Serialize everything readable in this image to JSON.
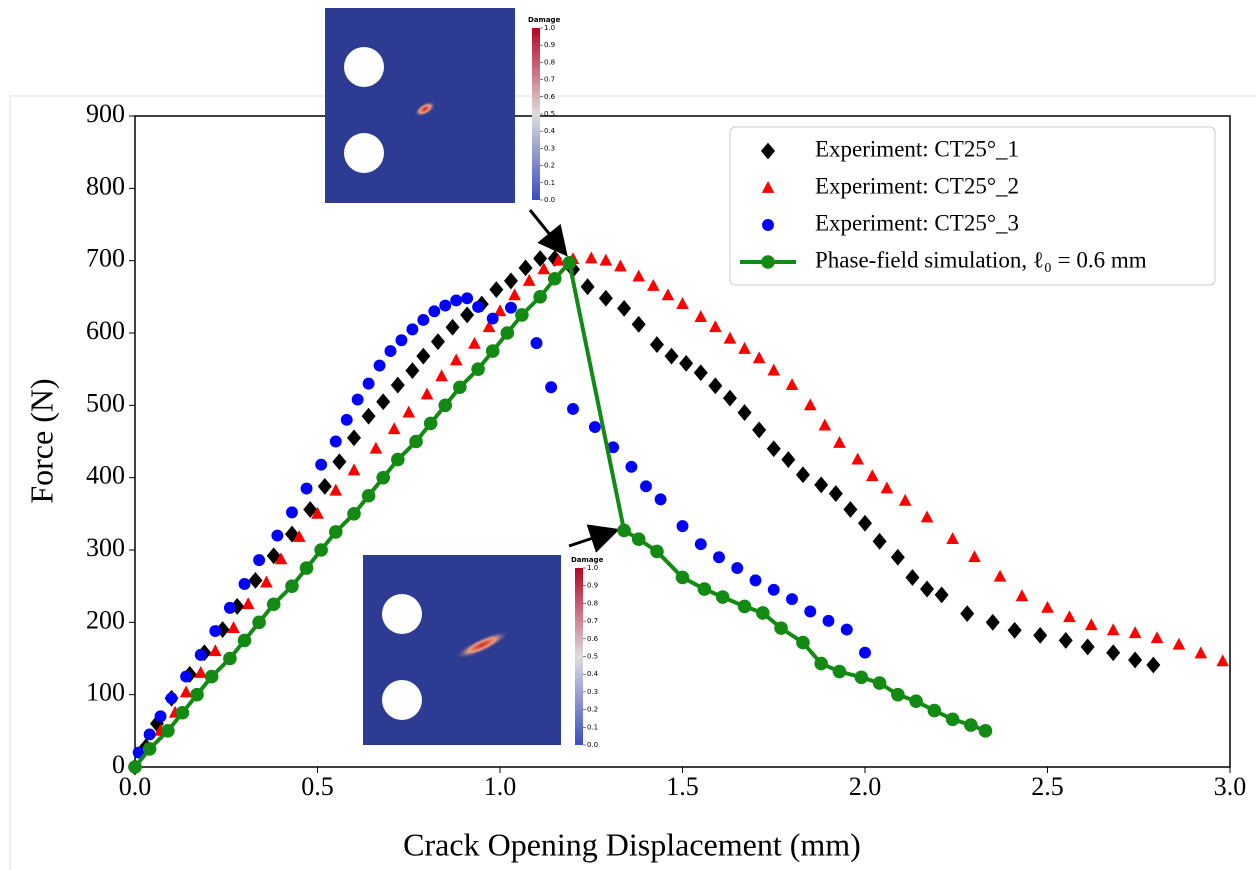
{
  "chart_data": {
    "type": "scatter",
    "xlabel": "Crack Opening Displacement  (mm)",
    "ylabel": "Force (N)",
    "xlim": [
      0,
      3
    ],
    "ylim": [
      0,
      900
    ],
    "xticks": [
      {
        "value": 0,
        "label": "0.0"
      },
      {
        "value": 0.5,
        "label": "0.5"
      },
      {
        "value": 1,
        "label": "1.0"
      },
      {
        "value": 1.5,
        "label": "1.5"
      },
      {
        "value": 2,
        "label": "2.0"
      },
      {
        "value": 2.5,
        "label": "2.5"
      },
      {
        "value": 3,
        "label": "3.0"
      }
    ],
    "yticks": [
      0,
      100,
      200,
      300,
      400,
      500,
      600,
      700,
      800,
      900
    ],
    "legend": "upper right",
    "series": [
      {
        "name": "Experiment: CT25°_1",
        "color": "#000000",
        "marker": "diamond",
        "line": false,
        "x": [
          0,
          0.03,
          0.06,
          0.1,
          0.15,
          0.19,
          0.24,
          0.28,
          0.33,
          0.38,
          0.43,
          0.48,
          0.52,
          0.56,
          0.6,
          0.64,
          0.68,
          0.72,
          0.76,
          0.79,
          0.83,
          0.87,
          0.91,
          0.95,
          0.99,
          1.03,
          1.07,
          1.11,
          1.15,
          1.2,
          1.24,
          1.29,
          1.34,
          1.38,
          1.43,
          1.47,
          1.51,
          1.55,
          1.59,
          1.63,
          1.67,
          1.71,
          1.75,
          1.79,
          1.83,
          1.88,
          1.92,
          1.96,
          2.0,
          2.04,
          2.09,
          2.13,
          2.17,
          2.21,
          2.28,
          2.35,
          2.41,
          2.48,
          2.55,
          2.61,
          2.68,
          2.74,
          2.79
        ],
        "values": [
          0,
          28,
          60,
          95,
          128,
          158,
          190,
          222,
          258,
          292,
          322,
          356,
          388,
          422,
          455,
          485,
          505,
          528,
          548,
          568,
          588,
          608,
          625,
          640,
          660,
          672,
          690,
          703,
          703,
          688,
          664,
          648,
          634,
          612,
          584,
          568,
          558,
          545,
          527,
          510,
          490,
          466,
          440,
          425,
          404,
          390,
          378,
          356,
          337,
          312,
          290,
          262,
          246,
          238,
          212,
          200,
          189,
          182,
          175,
          166,
          158,
          148,
          141
        ]
      },
      {
        "name": "Experiment: CT25°_2",
        "color": "#ff0000",
        "marker": "triangle",
        "line": false,
        "x": [
          0.03,
          0.07,
          0.11,
          0.14,
          0.18,
          0.22,
          0.27,
          0.31,
          0.36,
          0.4,
          0.45,
          0.5,
          0.55,
          0.6,
          0.66,
          0.71,
          0.75,
          0.8,
          0.84,
          0.88,
          0.93,
          0.97,
          1.0,
          1.04,
          1.08,
          1.12,
          1.16,
          1.2,
          1.25,
          1.29,
          1.33,
          1.38,
          1.42,
          1.46,
          1.5,
          1.55,
          1.59,
          1.63,
          1.67,
          1.71,
          1.75,
          1.8,
          1.85,
          1.89,
          1.93,
          1.98,
          2.02,
          2.06,
          2.11,
          2.17,
          2.24,
          2.3,
          2.37,
          2.43,
          2.5,
          2.56,
          2.62,
          2.68,
          2.74,
          2.8,
          2.86,
          2.92,
          2.98
        ],
        "values": [
          25,
          50,
          75,
          103,
          130,
          160,
          192,
          225,
          255,
          287,
          318,
          350,
          382,
          410,
          440,
          467,
          490,
          515,
          540,
          562,
          585,
          608,
          630,
          652,
          672,
          688,
          700,
          702,
          703,
          700,
          692,
          678,
          665,
          652,
          640,
          622,
          608,
          592,
          578,
          565,
          548,
          528,
          500,
          472,
          448,
          425,
          402,
          385,
          368,
          345,
          315,
          290,
          263,
          236,
          220,
          207,
          196,
          189,
          185,
          178,
          169,
          157,
          146
        ]
      },
      {
        "name": "Experiment: CT25°_3",
        "color": "#0000ff",
        "marker": "circle",
        "line": false,
        "x": [
          0.01,
          0.04,
          0.07,
          0.1,
          0.14,
          0.18,
          0.22,
          0.26,
          0.3,
          0.34,
          0.39,
          0.43,
          0.47,
          0.51,
          0.55,
          0.58,
          0.61,
          0.64,
          0.67,
          0.7,
          0.73,
          0.76,
          0.79,
          0.82,
          0.85,
          0.88,
          0.91,
          0.94,
          0.98,
          1.03,
          1.1,
          1.14,
          1.2,
          1.26,
          1.31,
          1.36,
          1.4,
          1.44,
          1.5,
          1.55,
          1.6,
          1.65,
          1.7,
          1.75,
          1.8,
          1.85,
          1.9,
          1.95,
          2.0
        ],
        "values": [
          20,
          45,
          70,
          95,
          125,
          155,
          188,
          220,
          253,
          286,
          320,
          352,
          385,
          418,
          450,
          480,
          508,
          530,
          555,
          575,
          590,
          605,
          618,
          630,
          638,
          645,
          648,
          636,
          620,
          635,
          586,
          525,
          495,
          470,
          442,
          415,
          388,
          370,
          333,
          308,
          290,
          275,
          258,
          245,
          232,
          215,
          202,
          190,
          158
        ]
      },
      {
        "name": "Phase-field simulation, ℓ₀ = 0.6 mm",
        "color": "#138a13",
        "marker": "circle",
        "line": true,
        "x": [
          0,
          0.04,
          0.09,
          0.13,
          0.17,
          0.21,
          0.26,
          0.3,
          0.34,
          0.38,
          0.43,
          0.47,
          0.51,
          0.55,
          0.6,
          0.64,
          0.68,
          0.72,
          0.77,
          0.81,
          0.85,
          0.89,
          0.94,
          0.98,
          1.02,
          1.06,
          1.11,
          1.15,
          1.19,
          1.34,
          1.38,
          1.43,
          1.5,
          1.56,
          1.61,
          1.67,
          1.72,
          1.77,
          1.83,
          1.88,
          1.93,
          1.99,
          2.04,
          2.09,
          2.14,
          2.19,
          2.24,
          2.29,
          2.33
        ],
        "values": [
          0,
          25,
          50,
          75,
          100,
          125,
          150,
          175,
          200,
          225,
          250,
          275,
          300,
          325,
          350,
          375,
          400,
          425,
          450,
          475,
          500,
          525,
          550,
          575,
          600,
          625,
          650,
          675,
          697,
          327,
          315,
          298,
          262,
          246,
          235,
          222,
          213,
          192,
          172,
          143,
          132,
          124,
          116,
          100,
          91,
          78,
          66,
          58,
          50
        ]
      }
    ]
  },
  "colorbar": {
    "title": "Damage",
    "ticks": [
      {
        "value": 0,
        "label": "0.0"
      },
      {
        "value": 0.1,
        "label": "0.1"
      },
      {
        "value": 0.2,
        "label": "0.2"
      },
      {
        "value": 0.3,
        "label": "0.3"
      },
      {
        "value": 0.4,
        "label": "0.4"
      },
      {
        "value": 0.5,
        "label": "0.5"
      },
      {
        "value": 0.6,
        "label": "0.6"
      },
      {
        "value": 0.7,
        "label": "0.7"
      },
      {
        "value": 0.8,
        "label": "0.8"
      },
      {
        "value": 0.9,
        "label": "0.9"
      },
      {
        "value": 1,
        "label": "1.0"
      }
    ]
  }
}
